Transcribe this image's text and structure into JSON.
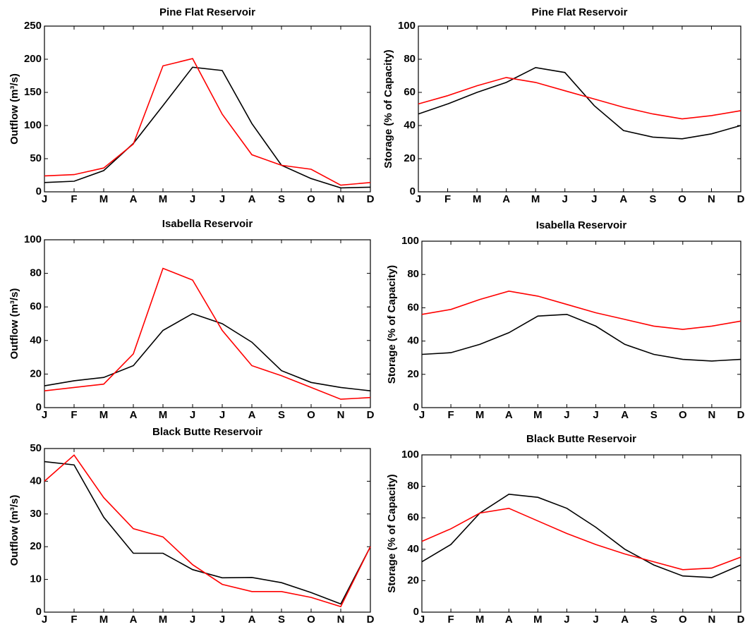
{
  "chart_data": [
    {
      "type": "line",
      "title": "Pine Flat Reservoir",
      "y_label": "Outflow (m³/s)",
      "categories": [
        "J",
        "F",
        "M",
        "A",
        "M",
        "J",
        "J",
        "A",
        "S",
        "O",
        "N",
        "D"
      ],
      "ylim": [
        0,
        250
      ],
      "yticks": [
        0,
        50,
        100,
        150,
        200,
        250
      ],
      "series": [
        {
          "color": "#000000",
          "values": [
            14,
            16,
            32,
            73,
            130,
            188,
            183,
            103,
            40,
            20,
            6,
            7
          ]
        },
        {
          "color": "#ff0000",
          "values": [
            24,
            26,
            36,
            72,
            190,
            201,
            117,
            56,
            40,
            34,
            10,
            14
          ]
        }
      ]
    },
    {
      "type": "line",
      "title": "Pine Flat Reservoir",
      "y_label": "Storage (% of Capacity)",
      "categories": [
        "J",
        "F",
        "M",
        "A",
        "M",
        "J",
        "J",
        "A",
        "S",
        "O",
        "N",
        "D"
      ],
      "ylim": [
        0,
        100
      ],
      "yticks": [
        0,
        20,
        40,
        60,
        80,
        100
      ],
      "series": [
        {
          "color": "#000000",
          "values": [
            47,
            53,
            60,
            66,
            75,
            72,
            52,
            37,
            33,
            32,
            35,
            40
          ]
        },
        {
          "color": "#ff0000",
          "values": [
            53,
            58,
            64,
            69,
            66,
            61,
            56,
            51,
            47,
            44,
            46,
            49
          ]
        }
      ]
    },
    {
      "type": "line",
      "title": "Isabella Reservoir",
      "y_label": "Outflow (m³/s)",
      "categories": [
        "J",
        "F",
        "M",
        "A",
        "M",
        "J",
        "J",
        "A",
        "S",
        "O",
        "N",
        "D"
      ],
      "ylim": [
        0,
        100
      ],
      "yticks": [
        0,
        20,
        40,
        60,
        80,
        100
      ],
      "series": [
        {
          "color": "#000000",
          "values": [
            13,
            16,
            18,
            25,
            46,
            56,
            50,
            39,
            22,
            15,
            12,
            10
          ]
        },
        {
          "color": "#ff0000",
          "values": [
            10,
            12,
            14,
            32,
            83,
            76,
            46,
            25,
            19,
            12,
            5,
            6
          ]
        }
      ]
    },
    {
      "type": "line",
      "title": "Isabella Reservoir",
      "y_label": "Storage (% of Capacity)",
      "categories": [
        "J",
        "F",
        "M",
        "A",
        "M",
        "J",
        "J",
        "A",
        "S",
        "O",
        "N",
        "D"
      ],
      "ylim": [
        0,
        100
      ],
      "yticks": [
        0,
        20,
        40,
        60,
        80,
        100
      ],
      "series": [
        {
          "color": "#000000",
          "values": [
            32,
            33,
            38,
            45,
            55,
            56,
            49,
            38,
            32,
            29,
            28,
            29
          ]
        },
        {
          "color": "#ff0000",
          "values": [
            56,
            59,
            65,
            70,
            67,
            62,
            57,
            53,
            49,
            47,
            49,
            52
          ]
        }
      ]
    },
    {
      "type": "line",
      "title": "Black Butte Reservoir",
      "y_label": "Outflow (m³/s)",
      "categories": [
        "J",
        "F",
        "M",
        "A",
        "M",
        "J",
        "J",
        "A",
        "S",
        "O",
        "N",
        "D"
      ],
      "ylim": [
        0,
        50
      ],
      "yticks": [
        0,
        10,
        20,
        30,
        40,
        50
      ],
      "series": [
        {
          "color": "#000000",
          "values": [
            46,
            45,
            29,
            18,
            18,
            13,
            10.5,
            10.6,
            9,
            6,
            2.5,
            20
          ]
        },
        {
          "color": "#ff0000",
          "values": [
            40,
            48,
            35,
            25.5,
            23,
            14.5,
            8.5,
            6.3,
            6.3,
            4.5,
            1.7,
            20
          ]
        }
      ]
    },
    {
      "type": "line",
      "title": "Black Butte Reservoir",
      "y_label": "Storage (% of Capacity)",
      "categories": [
        "J",
        "F",
        "M",
        "A",
        "M",
        "J",
        "J",
        "A",
        "S",
        "O",
        "N",
        "D"
      ],
      "ylim": [
        0,
        100
      ],
      "yticks": [
        0,
        20,
        40,
        60,
        80,
        100
      ],
      "series": [
        {
          "color": "#000000",
          "values": [
            32,
            43,
            63,
            75,
            73,
            66,
            54,
            40,
            30,
            23,
            22,
            30
          ]
        },
        {
          "color": "#ff0000",
          "values": [
            45,
            53,
            63,
            66,
            58,
            50,
            43,
            37,
            32,
            27,
            28,
            35
          ]
        }
      ]
    }
  ]
}
